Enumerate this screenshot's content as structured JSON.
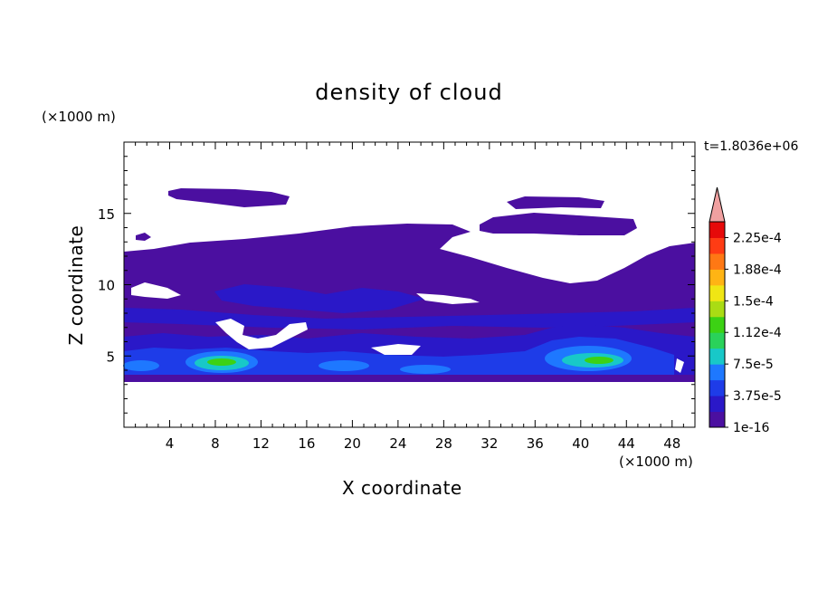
{
  "chart_data": {
    "type": "heatmap",
    "title": "density of cloud",
    "xlabel": "X coordinate",
    "ylabel": "Z coordinate",
    "x_unit": "(×1000 m)",
    "y_unit": "(×1000 m)",
    "timestamp": "t=1.8036e+06",
    "xlim": [
      0,
      50
    ],
    "ylim": [
      0,
      20
    ],
    "x_ticks": [
      4,
      8,
      12,
      16,
      20,
      24,
      28,
      32,
      36,
      40,
      44,
      48
    ],
    "y_ticks": [
      5,
      10,
      15
    ],
    "colorbar": {
      "labels": [
        "1e-16",
        "3.75e-5",
        "7.5e-5",
        "1.12e-4",
        "1.5e-4",
        "1.88e-4",
        "2.25e-4"
      ],
      "colors": [
        "#4b0fa0",
        "#2a18c8",
        "#1e3ce8",
        "#1e78ff",
        "#18c8c8",
        "#2ad25a",
        "#3cd214",
        "#aadc14",
        "#f0e614",
        "#ffb414",
        "#ff7814",
        "#ff3c14",
        "#e60a0a"
      ],
      "extend_color": "#f0a0a0",
      "extend_max": true
    }
  }
}
